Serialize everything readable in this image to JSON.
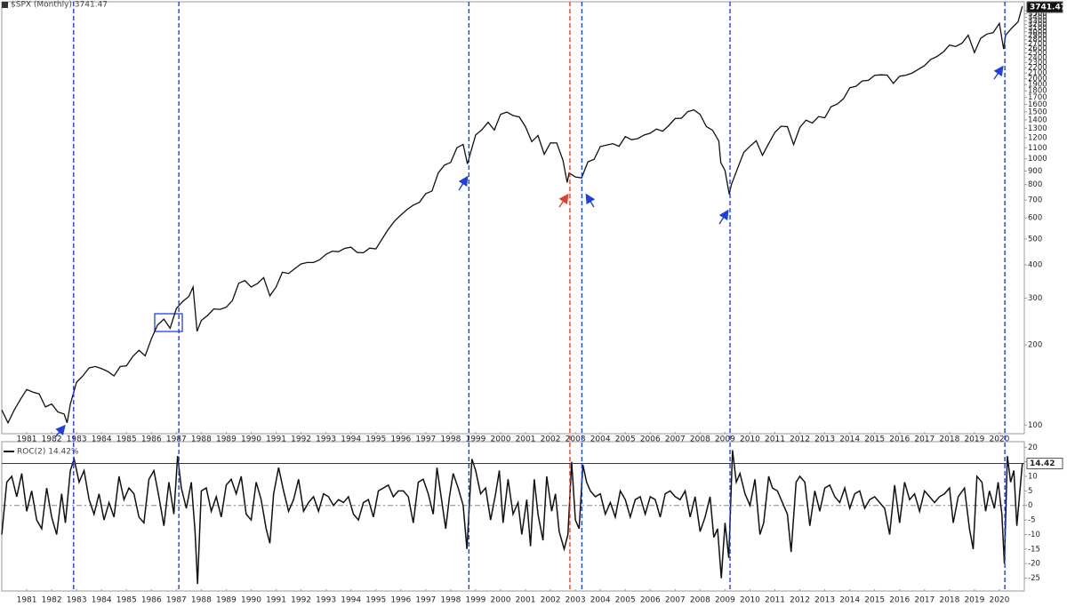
{
  "chart_data": [
    {
      "type": "line",
      "title": "$SPX (Monthly) 3741.47",
      "log_scale": true,
      "xlim": [
        1980,
        2021
      ],
      "ylim": [
        95,
        3800
      ],
      "xticks": [
        1981,
        1982,
        1983,
        1984,
        1985,
        1986,
        1987,
        1988,
        1989,
        1990,
        1991,
        1992,
        1993,
        1994,
        1995,
        1996,
        1997,
        1998,
        1999,
        2000,
        2001,
        2002,
        2003,
        2004,
        2005,
        2006,
        2007,
        2008,
        2009,
        2010,
        2011,
        2012,
        2013,
        2014,
        2015,
        2016,
        2017,
        2018,
        2019,
        2020
      ],
      "yticks": [
        100,
        200,
        300,
        400,
        500,
        600,
        700,
        800,
        900,
        1000,
        1100,
        1200,
        1300,
        1400,
        1500,
        1600,
        1700,
        1800,
        1900,
        2000,
        2100,
        2200,
        2300,
        2400,
        2500,
        2600,
        2700,
        2800,
        2900,
        3000,
        3100,
        3200,
        3300,
        3400,
        3500,
        3600
      ],
      "vlines": [
        {
          "x": 1982.88,
          "color": "#1f3fe0"
        },
        {
          "x": 1987.1,
          "color": "#1f3fe0"
        },
        {
          "x": 1998.73,
          "color": "#1f3fe0"
        },
        {
          "x": 2002.78,
          "color": "#e0402a"
        },
        {
          "x": 2003.26,
          "color": "#1f3fe0"
        },
        {
          "x": 2009.2,
          "color": "#1f3fe0"
        },
        {
          "x": 2020.22,
          "color": "#1f3fe0"
        }
      ],
      "x": [
        1980,
        1980.25,
        1980.5,
        1980.75,
        1981,
        1981.25,
        1981.5,
        1981.75,
        1982,
        1982.25,
        1982.5,
        1982.62,
        1982.75,
        1983,
        1983.25,
        1983.5,
        1983.75,
        1984,
        1984.25,
        1984.5,
        1984.75,
        1985,
        1985.25,
        1985.5,
        1985.75,
        1986,
        1986.25,
        1986.5,
        1986.75,
        1987,
        1987.25,
        1987.5,
        1987.67,
        1987.83,
        1988,
        1988.25,
        1988.5,
        1988.75,
        1989,
        1989.25,
        1989.5,
        1989.75,
        1990,
        1990.25,
        1990.5,
        1990.75,
        1991,
        1991.25,
        1991.5,
        1991.75,
        1992,
        1992.25,
        1992.5,
        1992.75,
        1993,
        1993.25,
        1993.5,
        1993.75,
        1994,
        1994.25,
        1994.5,
        1994.75,
        1995,
        1995.25,
        1995.5,
        1995.75,
        1996,
        1996.25,
        1996.5,
        1996.75,
        1997,
        1997.25,
        1997.5,
        1997.75,
        1998,
        1998.25,
        1998.5,
        1998.67,
        1998.75,
        1999,
        1999.25,
        1999.5,
        1999.75,
        2000,
        2000.25,
        2000.5,
        2000.75,
        2001,
        2001.25,
        2001.5,
        2001.75,
        2002,
        2002.25,
        2002.5,
        2002.67,
        2002.75,
        2003,
        2003.25,
        2003.5,
        2003.75,
        2004,
        2004.25,
        2004.5,
        2004.75,
        2005,
        2005.25,
        2005.5,
        2005.75,
        2006,
        2006.25,
        2006.5,
        2006.75,
        2007,
        2007.25,
        2007.5,
        2007.75,
        2008,
        2008.25,
        2008.5,
        2008.75,
        2008.83,
        2009,
        2009.17,
        2009.25,
        2009.5,
        2009.75,
        2010,
        2010.25,
        2010.5,
        2010.75,
        2011,
        2011.25,
        2011.5,
        2011.75,
        2012,
        2012.25,
        2012.5,
        2012.75,
        2013,
        2013.25,
        2013.5,
        2013.75,
        2014,
        2014.25,
        2014.5,
        2014.75,
        2015,
        2015.25,
        2015.5,
        2015.75,
        2016,
        2016.25,
        2016.5,
        2016.75,
        2017,
        2017.25,
        2017.5,
        2017.75,
        2018,
        2018.25,
        2018.5,
        2018.75,
        2019,
        2019.25,
        2019.5,
        2019.75,
        2020,
        2020.17,
        2020.25,
        2020.5,
        2020.75,
        2020.92
      ],
      "series": [
        {
          "name": "$SPX",
          "color": "#111111",
          "values": [
            114,
            102,
            114,
            125,
            136,
            133,
            131,
            117,
            120,
            112,
            110,
            102,
            120,
            145,
            153,
            164,
            166,
            163,
            159,
            153,
            166,
            167,
            181,
            191,
            182,
            211,
            238,
            250,
            231,
            274,
            291,
            304,
            330,
            225,
            247,
            258,
            273,
            272,
            277,
            294,
            341,
            349,
            330,
            340,
            358,
            306,
            330,
            375,
            371,
            387,
            403,
            408,
            408,
            418,
            438,
            450,
            448,
            461,
            466,
            445,
            444,
            462,
            459,
            500,
            544,
            584,
            615,
            645,
            670,
            687,
            740,
            757,
            885,
            947,
            970,
            1101,
            1133,
            957,
            1017,
            1229,
            1286,
            1372,
            1282,
            1469,
            1498,
            1454,
            1436,
            1320,
            1160,
            1224,
            1040,
            1148,
            1147,
            989,
            815,
            885,
            855,
            848,
            974,
            996,
            1112,
            1126,
            1140,
            1114,
            1212,
            1180,
            1191,
            1228,
            1248,
            1294,
            1270,
            1335,
            1418,
            1420,
            1503,
            1527,
            1468,
            1322,
            1280,
            1166,
            968,
            903,
            735,
            798,
            919,
            1057,
            1115,
            1169,
            1031,
            1141,
            1258,
            1326,
            1321,
            1131,
            1312,
            1398,
            1362,
            1441,
            1426,
            1569,
            1606,
            1682,
            1848,
            1872,
            1960,
            1972,
            2059,
            2068,
            2063,
            1920,
            2044,
            2060,
            2099,
            2168,
            2239,
            2363,
            2423,
            2519,
            2674,
            2641,
            2718,
            2914,
            2507,
            2834,
            2942,
            2977,
            3226,
            2585,
            2912,
            3100,
            3270,
            3741.47
          ]
        }
      ]
    },
    {
      "type": "line",
      "title": "ROC(2) 14.42%",
      "log_scale": false,
      "zero_line": true,
      "xlim": [
        1980,
        2021
      ],
      "ylim": [
        -28.5,
        21
      ],
      "xticks": [
        1981,
        1982,
        1983,
        1984,
        1985,
        1986,
        1987,
        1988,
        1989,
        1990,
        1991,
        1992,
        1993,
        1994,
        1995,
        1996,
        1997,
        1998,
        1999,
        2000,
        2001,
        2002,
        2003,
        2004,
        2005,
        2006,
        2007,
        2008,
        2009,
        2010,
        2011,
        2012,
        2013,
        2014,
        2015,
        2016,
        2017,
        2018,
        2019,
        2020
      ],
      "yticks": [
        20,
        15,
        10,
        5,
        0,
        -5,
        -10,
        -15,
        -20,
        -25
      ],
      "x": [
        1980,
        1980.2,
        1980.4,
        1980.6,
        1980.8,
        1981,
        1981.2,
        1981.4,
        1981.6,
        1981.8,
        1982,
        1982.2,
        1982.4,
        1982.55,
        1982.75,
        1982.9,
        1983.1,
        1983.3,
        1983.5,
        1983.7,
        1983.9,
        1984.1,
        1984.3,
        1984.5,
        1984.7,
        1984.9,
        1985.1,
        1985.3,
        1985.5,
        1985.7,
        1985.9,
        1986.1,
        1986.3,
        1986.5,
        1986.7,
        1986.9,
        1987.05,
        1987.2,
        1987.4,
        1987.6,
        1987.75,
        1987.85,
        1988,
        1988.2,
        1988.4,
        1988.6,
        1988.8,
        1989,
        1989.2,
        1989.4,
        1989.6,
        1989.8,
        1990,
        1990.2,
        1990.4,
        1990.6,
        1990.75,
        1990.9,
        1991.1,
        1991.3,
        1991.5,
        1991.7,
        1991.9,
        1992.1,
        1992.3,
        1992.5,
        1992.7,
        1992.9,
        1993.1,
        1993.3,
        1993.5,
        1993.7,
        1993.9,
        1994.1,
        1994.3,
        1994.5,
        1994.7,
        1994.9,
        1995.1,
        1995.3,
        1995.5,
        1995.7,
        1995.9,
        1996.1,
        1996.3,
        1996.5,
        1996.7,
        1996.9,
        1997.1,
        1997.3,
        1997.45,
        1997.6,
        1997.8,
        1997.95,
        1998.1,
        1998.3,
        1998.5,
        1998.65,
        1998.85,
        1999,
        1999.2,
        1999.4,
        1999.6,
        1999.8,
        1999.95,
        2000.1,
        2000.3,
        2000.5,
        2000.7,
        2000.85,
        2001.05,
        2001.2,
        2001.35,
        2001.5,
        2001.7,
        2001.85,
        2002.05,
        2002.2,
        2002.35,
        2002.55,
        2002.7,
        2002.85,
        2003,
        2003.15,
        2003.3,
        2003.45,
        2003.6,
        2003.8,
        2004,
        2004.2,
        2004.4,
        2004.6,
        2004.8,
        2005,
        2005.2,
        2005.4,
        2005.6,
        2005.8,
        2006,
        2006.2,
        2006.4,
        2006.6,
        2006.8,
        2007,
        2007.2,
        2007.4,
        2007.6,
        2007.8,
        2008,
        2008.2,
        2008.4,
        2008.55,
        2008.7,
        2008.85,
        2009,
        2009.15,
        2009.3,
        2009.45,
        2009.6,
        2009.8,
        2010,
        2010.2,
        2010.4,
        2010.55,
        2010.75,
        2010.9,
        2011.1,
        2011.3,
        2011.5,
        2011.65,
        2011.85,
        2012,
        2012.2,
        2012.4,
        2012.6,
        2012.8,
        2013,
        2013.2,
        2013.4,
        2013.6,
        2013.8,
        2014,
        2014.2,
        2014.4,
        2014.6,
        2014.8,
        2015,
        2015.2,
        2015.4,
        2015.6,
        2015.8,
        2016,
        2016.2,
        2016.4,
        2016.6,
        2016.8,
        2017,
        2017.2,
        2017.4,
        2017.6,
        2017.8,
        2018,
        2018.15,
        2018.35,
        2018.6,
        2018.8,
        2018.95,
        2019.1,
        2019.3,
        2019.45,
        2019.6,
        2019.8,
        2019.95,
        2020.1,
        2020.2,
        2020.32,
        2020.45,
        2020.58,
        2020.7,
        2020.92
      ],
      "series": [
        {
          "name": "ROC(2)",
          "color": "#111111",
          "values": [
            -10,
            8,
            10,
            3,
            11,
            -2,
            5,
            -5,
            -8,
            6,
            -4,
            -10,
            4,
            -6,
            12,
            16,
            8,
            12,
            2,
            -3,
            4,
            -5,
            1,
            -4,
            10,
            2,
            6,
            4,
            -4,
            -6,
            9,
            12,
            3,
            -7,
            8,
            -3,
            17,
            6,
            -1,
            8,
            -9,
            -27,
            5,
            6,
            -2,
            3,
            -4,
            7,
            9,
            4,
            10,
            -3,
            -5,
            8,
            2,
            -8,
            -13,
            4,
            13,
            5,
            -2,
            2,
            9,
            -2,
            1,
            3,
            -2,
            4,
            3,
            0,
            2,
            1,
            3,
            -3,
            -5,
            1,
            2,
            -4,
            5,
            6,
            7,
            3,
            5,
            5,
            3,
            -6,
            8,
            9,
            4,
            -3,
            13,
            4,
            -8,
            3,
            11,
            6,
            0,
            -15,
            16,
            12,
            4,
            6,
            -5,
            4,
            12,
            -6,
            9,
            -3,
            1,
            -10,
            2,
            -14,
            9,
            -3,
            -12,
            10,
            -2,
            4,
            -9,
            -15,
            -10,
            15,
            -5,
            -8,
            14,
            8,
            5,
            3,
            4,
            -3,
            1,
            -4,
            5,
            2,
            -4,
            2,
            3,
            -3,
            3,
            2,
            -4,
            4,
            5,
            3,
            2,
            5,
            -4,
            3,
            -9,
            -4,
            3,
            -11,
            -8,
            -25,
            -6,
            -18,
            19,
            8,
            11,
            4,
            0,
            9,
            -10,
            -6,
            10,
            6,
            5,
            1,
            -3,
            -16,
            8,
            10,
            8,
            -7,
            5,
            -2,
            6,
            7,
            3,
            1,
            6,
            -1,
            4,
            5,
            -1,
            2,
            3,
            1,
            -1,
            -10,
            7,
            -6,
            8,
            2,
            4,
            -2,
            5,
            3,
            1,
            3,
            4,
            6,
            -6,
            3,
            6,
            -8,
            -15,
            10,
            8,
            -2,
            5,
            -1,
            8,
            -3,
            -20,
            17,
            8,
            12,
            -7,
            14.42
          ]
        }
      ]
    }
  ]
}
